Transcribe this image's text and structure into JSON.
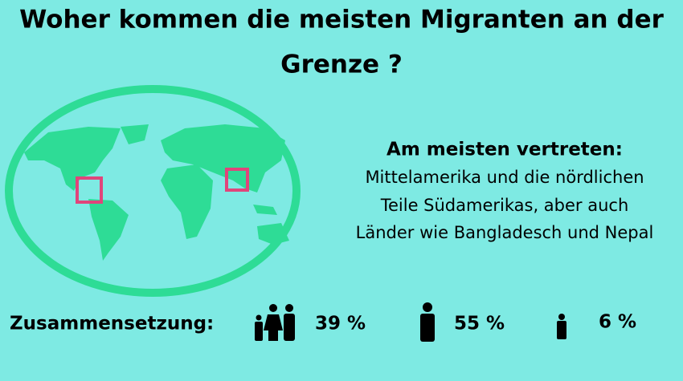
{
  "header": {
    "title_lines": [
      "Woher kommen die meisten Migranten an der",
      "Grenze ?"
    ]
  },
  "info": {
    "heading": "Am meisten vertreten:",
    "lines": [
      "Mittelamerika und die nördlichen",
      "Teile Südamerikas, aber auch",
      "Länder wie Bangladesch und Nepal"
    ]
  },
  "composition": {
    "label": "Zusammensetzung:",
    "items": [
      {
        "label": "39 %"
      },
      {
        "label": "55 %"
      },
      {
        "label": "6 %"
      }
    ]
  }
}
